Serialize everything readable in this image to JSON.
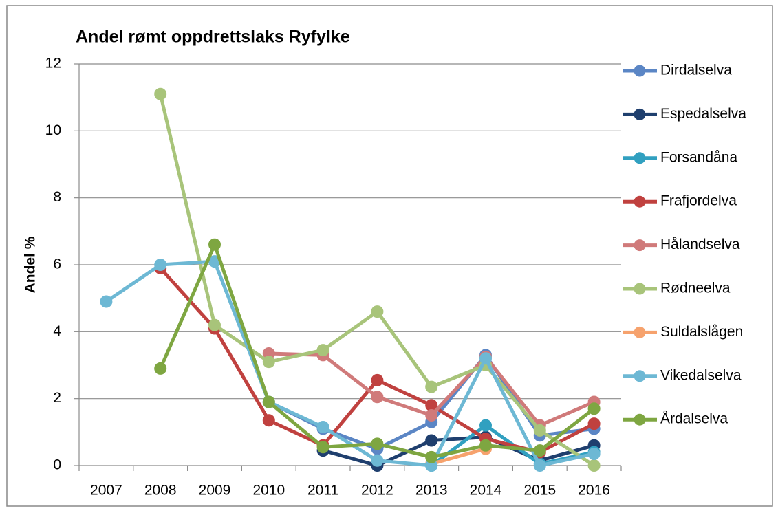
{
  "chart_data": {
    "type": "line",
    "title": "Andel rømt oppdrettslaks Ryfylke",
    "y_label": "Andel %",
    "categories": [
      "2007",
      "2008",
      "2009",
      "2010",
      "2011",
      "2012",
      "2013",
      "2014",
      "2015",
      "2016"
    ],
    "ylim": [
      0,
      12
    ],
    "yticks": [
      0,
      2,
      4,
      6,
      8,
      10,
      12
    ],
    "grid": true,
    "legend": "right",
    "series": [
      {
        "name": "Dirdalselva",
        "color": "#5b86c5",
        "values": [
          null,
          null,
          null,
          1.9,
          1.1,
          0.5,
          1.3,
          3.3,
          0.9,
          1.1
        ]
      },
      {
        "name": "Espedalselva",
        "color": "#1f3f6e",
        "values": [
          null,
          null,
          null,
          null,
          0.45,
          0,
          0.75,
          0.85,
          0.15,
          0.6
        ]
      },
      {
        "name": "Forsandåna",
        "color": "#31a0c0",
        "values": [
          null,
          null,
          null,
          null,
          null,
          null,
          0,
          1.2,
          0.05,
          0.4
        ]
      },
      {
        "name": "Frafjordelva",
        "color": "#c0413f",
        "values": [
          null,
          5.9,
          4.1,
          1.35,
          0.6,
          2.55,
          1.8,
          0.8,
          0.4,
          1.25
        ]
      },
      {
        "name": "Hålandselva",
        "color": "#d07a7a",
        "values": [
          null,
          null,
          null,
          3.35,
          3.3,
          2.05,
          1.5,
          3.25,
          1.2,
          1.9
        ]
      },
      {
        "name": "Rødneelva",
        "color": "#a8c47a",
        "values": [
          null,
          11.1,
          4.2,
          3.1,
          3.45,
          4.6,
          2.35,
          3.0,
          1.05,
          0
        ]
      },
      {
        "name": "Suldalslågen",
        "color": "#f6a26d",
        "values": [
          null,
          null,
          null,
          null,
          null,
          null,
          0.05,
          0.5,
          null,
          null
        ]
      },
      {
        "name": "Vikedalselva",
        "color": "#6db8d4",
        "values": [
          4.9,
          6.0,
          6.1,
          1.9,
          1.15,
          0.15,
          0,
          3.2,
          0,
          0.35
        ]
      },
      {
        "name": "Årdalselva",
        "color": "#7ea641",
        "values": [
          null,
          2.9,
          6.6,
          1.9,
          0.55,
          0.65,
          0.25,
          0.6,
          0.45,
          1.7
        ]
      }
    ]
  }
}
